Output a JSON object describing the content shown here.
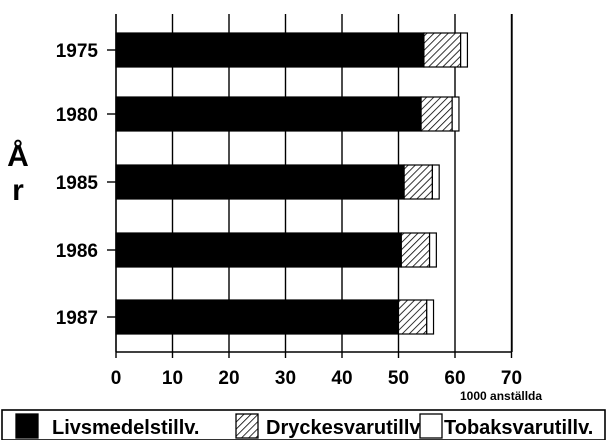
{
  "chart_data": {
    "type": "bar",
    "orientation": "horizontal",
    "stacked": true,
    "categories": [
      "1975",
      "1980",
      "1985",
      "1986",
      "1987"
    ],
    "series": [
      {
        "name": "Livsmedelstillv.",
        "values": [
          54.5,
          54,
          51,
          50.5,
          50
        ],
        "fill": "solid",
        "color": "#000000"
      },
      {
        "name": "Dryckesvarutillv.",
        "values": [
          6.5,
          5.5,
          5,
          5,
          5
        ],
        "fill": "hatch",
        "color": "#000000"
      },
      {
        "name": "Tobaksvarutillv.",
        "values": [
          1.2,
          1.2,
          1.2,
          1.2,
          1.2
        ],
        "fill": "white",
        "color": "#ffffff"
      }
    ],
    "xlim": [
      0,
      70
    ],
    "xticks": [
      "0",
      "10",
      "20",
      "30",
      "40",
      "50",
      "60",
      "70"
    ],
    "x_unit_label": "1000 anställda",
    "ylabel": "År",
    "grid": "vertical",
    "legend_position": "bottom"
  }
}
